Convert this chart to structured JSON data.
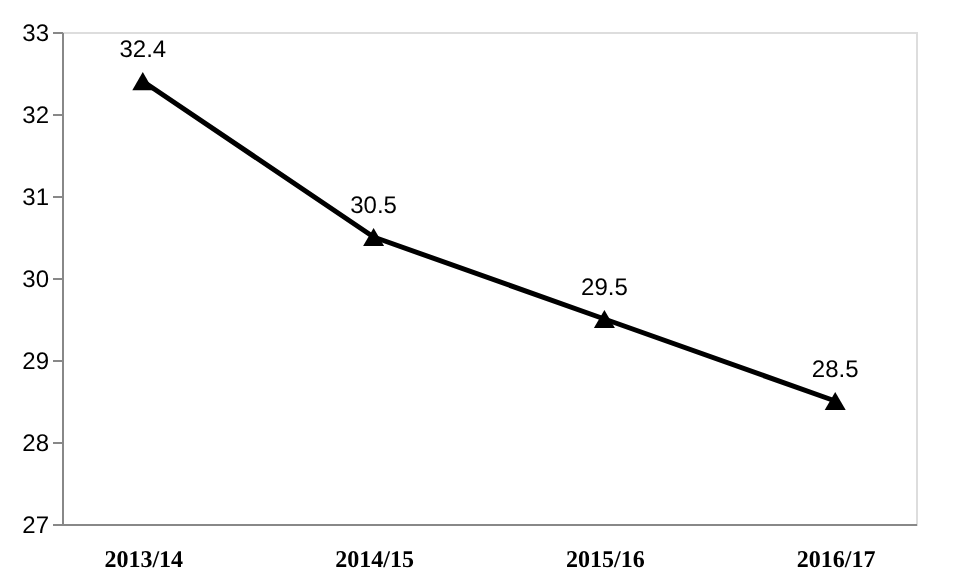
{
  "chart_data": {
    "type": "line",
    "categories": [
      "2013/14",
      "2014/15",
      "2015/16",
      "2016/17"
    ],
    "series": [
      {
        "color": "#000000",
        "values": [
          32.4,
          30.5,
          29.5,
          28.5
        ]
      }
    ],
    "ylim": [
      27,
      33
    ],
    "yticks": [
      27,
      28,
      29,
      30,
      31,
      32,
      33
    ],
    "grid": false,
    "marker": "triangle",
    "line_style": "solid",
    "data_labels": true
  }
}
